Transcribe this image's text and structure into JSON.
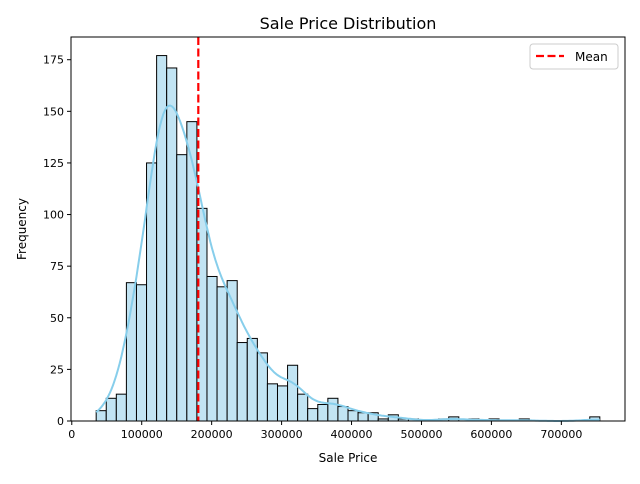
{
  "chart_data": {
    "type": "bar",
    "title": "Sale Price Distribution",
    "xlabel": "Sale Price",
    "ylabel": "Frequency",
    "xlim": [
      -1100,
      791000
    ],
    "ylim": [
      0,
      186
    ],
    "bin_start": 34900,
    "bin_width": 14402,
    "counts": [
      5,
      11,
      13,
      67,
      66,
      125,
      177,
      171,
      129,
      145,
      103,
      70,
      65,
      68,
      38,
      40,
      33,
      18,
      17,
      27,
      13,
      6,
      8,
      11,
      7,
      5,
      4,
      4,
      1,
      3,
      1,
      1,
      0,
      0,
      1,
      2,
      0,
      1,
      0,
      1,
      0,
      0,
      1,
      0,
      0,
      0,
      0,
      0,
      0,
      2
    ],
    "x_ticks": [
      0,
      100000,
      200000,
      300000,
      400000,
      500000,
      600000,
      700000
    ],
    "x_tick_labels": [
      "0",
      "100000",
      "200000",
      "300000",
      "400000",
      "500000",
      "600000",
      "700000"
    ],
    "y_ticks": [
      0,
      25,
      50,
      75,
      100,
      125,
      150,
      175
    ],
    "y_tick_labels": [
      "0",
      "25",
      "50",
      "75",
      "100",
      "125",
      "150",
      "175"
    ],
    "mean": 180921,
    "kde": true,
    "grid": false,
    "legend": {
      "position": "top-right",
      "entries": [
        "Mean"
      ]
    },
    "colors": {
      "bar": "#c2e4f3",
      "bar_edge": "#000000",
      "kde": "#87ceeb",
      "mean": "#ff0000"
    }
  }
}
